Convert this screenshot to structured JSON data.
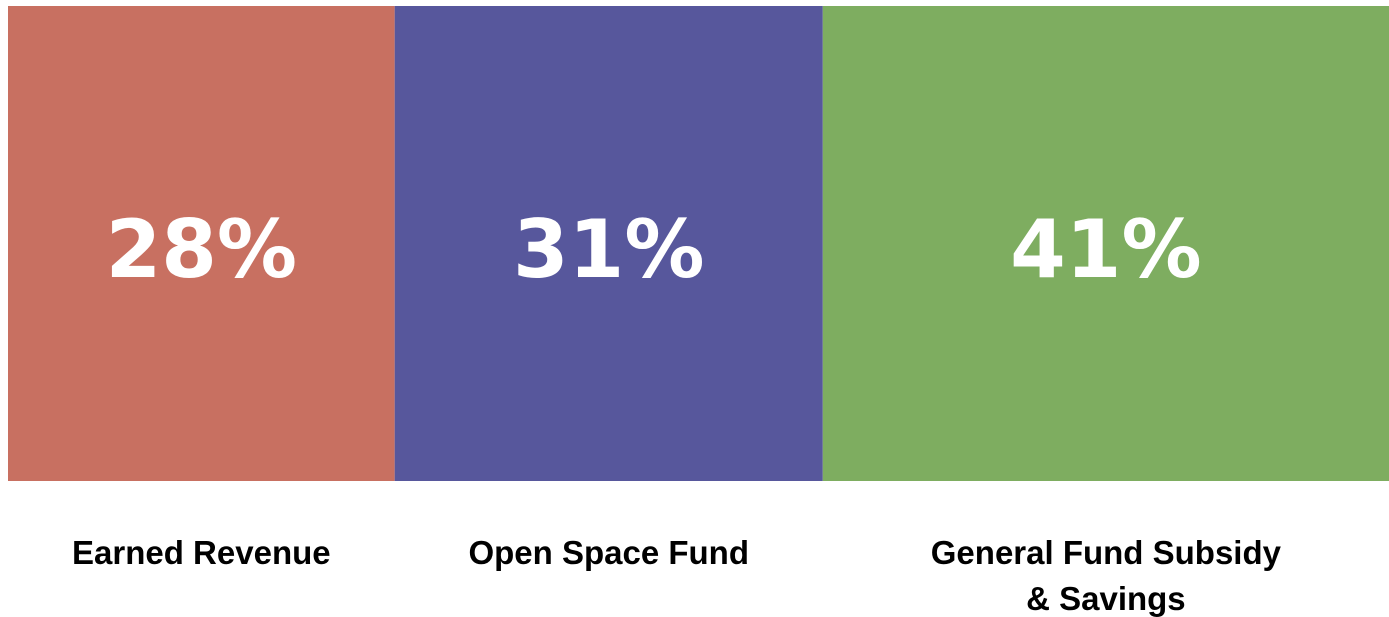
{
  "chart_data": {
    "type": "stacked_bar_100",
    "categories": [
      "Earned Revenue",
      "Open Space Fund",
      "General Fund Subsidy & Savings"
    ],
    "values": [
      28,
      31,
      41
    ],
    "value_labels": [
      "28%",
      "31%",
      "41%"
    ],
    "colors": [
      "#c87061",
      "#57579c",
      "#7ead60"
    ],
    "xlim": [
      0,
      100
    ]
  }
}
